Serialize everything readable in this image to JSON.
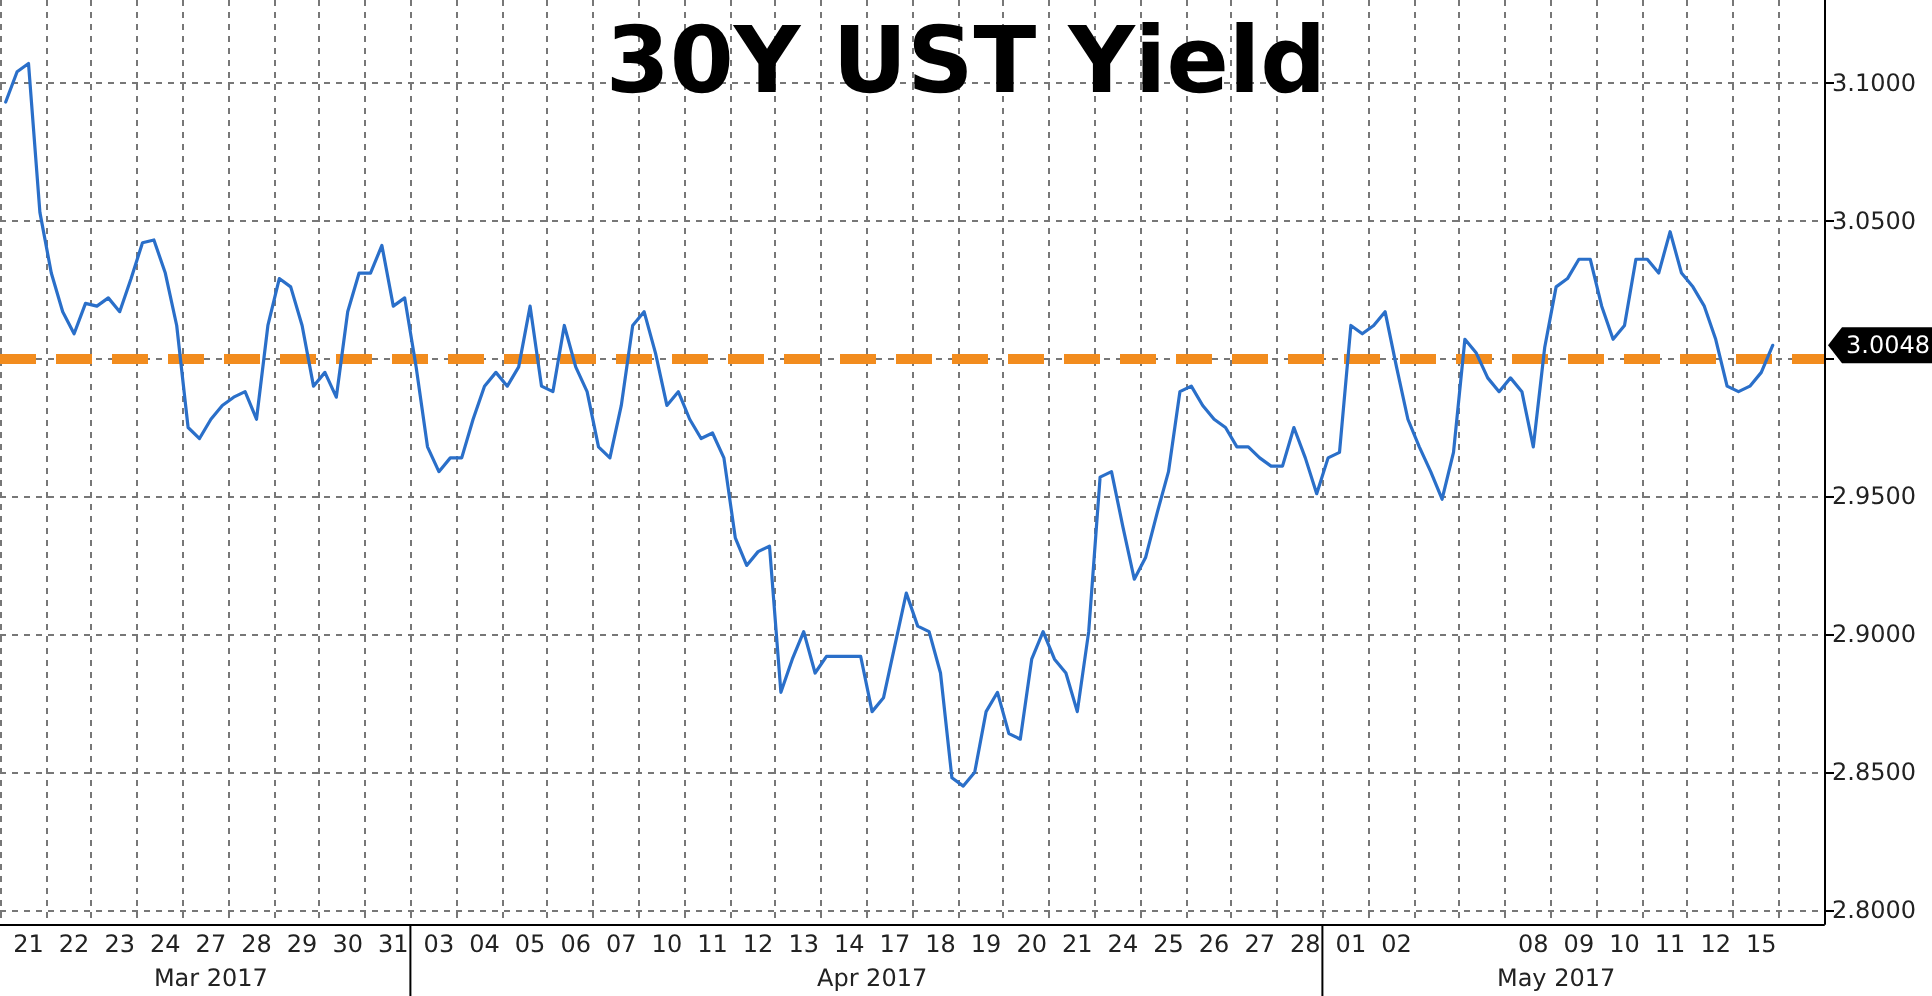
{
  "chart_data": {
    "type": "line",
    "title": "30Y UST Yield",
    "categories": [
      null,
      null,
      "21",
      null,
      null,
      null,
      "22",
      null,
      null,
      null,
      "23",
      null,
      null,
      null,
      "24",
      null,
      null,
      null,
      "27",
      null,
      null,
      null,
      "28",
      null,
      null,
      null,
      "29",
      null,
      null,
      null,
      "30",
      null,
      null,
      null,
      "31",
      null,
      null,
      null,
      "03",
      null,
      null,
      null,
      "04",
      null,
      null,
      null,
      "05",
      null,
      null,
      null,
      "06",
      null,
      null,
      null,
      "07",
      null,
      null,
      null,
      "10",
      null,
      null,
      null,
      "11",
      null,
      null,
      null,
      "12",
      null,
      null,
      null,
      "13",
      null,
      null,
      null,
      "14",
      null,
      null,
      null,
      "17",
      null,
      null,
      null,
      "18",
      null,
      null,
      null,
      "19",
      null,
      null,
      null,
      "20",
      null,
      null,
      null,
      "21",
      null,
      null,
      null,
      "24",
      null,
      null,
      null,
      "25",
      null,
      null,
      null,
      "26",
      null,
      null,
      null,
      "27",
      null,
      null,
      null,
      "28",
      null,
      null,
      null,
      "01",
      null,
      null,
      null,
      "02",
      null,
      null,
      null,
      null,
      null,
      null,
      null,
      null,
      null,
      null,
      null,
      "08",
      null,
      null,
      null,
      "09",
      null,
      null,
      null,
      "10",
      null,
      null,
      null,
      "11",
      null,
      null,
      null,
      "12",
      null,
      null,
      null,
      "15",
      null,
      null,
      null,
      null,
      null
    ],
    "series": [
      {
        "color": "#2a6fc9",
        "values": [
          3.093,
          3.104,
          3.107,
          3.053,
          3.031,
          3.017,
          3.009,
          3.02,
          3.019,
          3.022,
          3.017,
          3.029,
          3.042,
          3.043,
          3.031,
          3.012,
          2.975,
          2.971,
          2.978,
          2.983,
          2.986,
          2.988,
          2.978,
          3.012,
          3.029,
          3.026,
          3.012,
          2.99,
          2.995,
          2.986,
          3.017,
          3.031,
          3.031,
          3.041,
          3.019,
          3.022,
          2.997,
          2.968,
          2.959,
          2.964,
          2.964,
          2.978,
          2.99,
          2.995,
          2.99,
          2.997,
          3.019,
          2.99,
          2.988,
          3.012,
          2.997,
          2.988,
          2.968,
          2.964,
          2.983,
          3.012,
          3.017,
          3.002,
          2.983,
          2.988,
          2.978,
          2.971,
          2.973,
          2.964,
          2.935,
          2.925,
          2.93,
          2.932,
          2.879,
          2.891,
          2.901,
          2.886,
          2.892,
          2.892,
          2.892,
          2.892,
          2.872,
          2.877,
          2.896,
          2.915,
          2.903,
          2.901,
          2.886,
          2.848,
          2.845,
          2.85,
          2.872,
          2.879,
          2.864,
          2.862,
          2.891,
          2.901,
          2.891,
          2.886,
          2.872,
          2.901,
          2.957,
          2.959,
          2.939,
          2.92,
          2.928,
          2.944,
          2.959,
          2.988,
          2.99,
          2.983,
          2.978,
          2.975,
          2.968,
          2.968,
          2.964,
          2.961,
          2.961,
          2.975,
          2.964,
          2.951,
          2.964,
          2.966,
          3.012,
          3.009,
          3.012,
          3.017,
          2.997,
          2.978,
          2.968,
          2.959,
          2.949,
          2.966,
          3.007,
          3.002,
          2.993,
          2.988,
          2.993,
          2.988,
          2.968,
          3.004,
          3.026,
          3.029,
          3.036,
          3.036,
          3.019,
          3.007,
          3.012,
          3.036,
          3.036,
          3.031,
          3.046,
          3.031,
          3.026,
          3.019,
          3.007,
          2.99,
          2.988,
          2.99,
          2.995,
          3.0048,
          null,
          null,
          null,
          null
        ]
      }
    ],
    "ylim": [
      2.795,
      3.13
    ],
    "yticks": [
      {
        "value": 2.8,
        "label": "2.8000"
      },
      {
        "value": 2.85,
        "label": "2.8500"
      },
      {
        "value": 2.9,
        "label": "2.9000"
      },
      {
        "value": 2.95,
        "label": "2.9500"
      },
      {
        "value": 3.0,
        "label": null
      },
      {
        "value": 3.05,
        "label": "3.0500"
      },
      {
        "value": 3.1,
        "label": "3.1000"
      }
    ],
    "grid": true,
    "marker": "none",
    "line_style": "solid",
    "ref_lines": [
      {
        "axis": "y",
        "value": 3.0,
        "color": "#f28c1e",
        "line_style": "dashed"
      }
    ],
    "annotations": [
      "Mar 2017",
      "Apr 2017",
      "May 2017",
      "3.0048"
    ]
  }
}
